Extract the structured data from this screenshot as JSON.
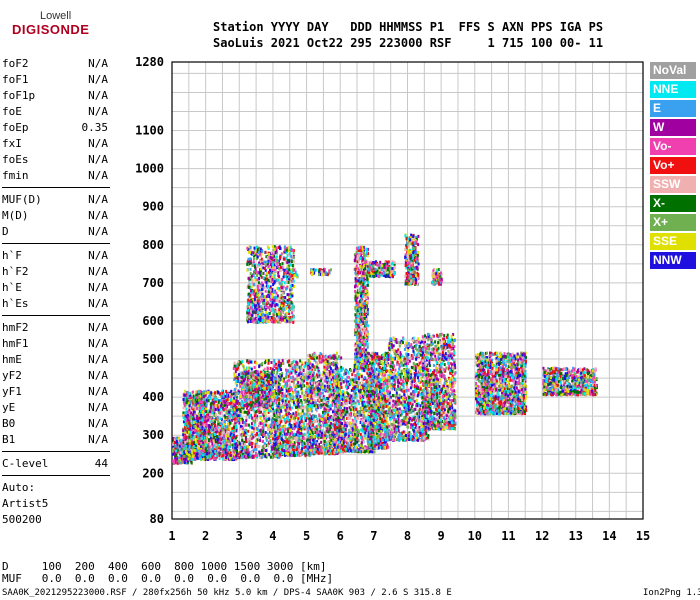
{
  "logo": {
    "line1": "Lowell",
    "line2": "DIGISONDE"
  },
  "header": {
    "line1": "Station YYYY DAY   DDD HHMMSS P1  FFS S AXN PPS IGA PS",
    "line2": "SaoLuis 2021 Oct22 295 223000 RSF     1 715 100 00- 11"
  },
  "params": {
    "group1": [
      {
        "name": "foF2",
        "value": "N/A"
      },
      {
        "name": "foF1",
        "value": "N/A"
      },
      {
        "name": "foF1p",
        "value": "N/A"
      },
      {
        "name": "foE",
        "value": "N/A"
      },
      {
        "name": "foEp",
        "value": "0.35"
      },
      {
        "name": "fxI",
        "value": "N/A"
      },
      {
        "name": "foEs",
        "value": "N/A"
      },
      {
        "name": "fmin",
        "value": "N/A"
      }
    ],
    "group2": [
      {
        "name": "MUF(D)",
        "value": "N/A"
      },
      {
        "name": "M(D)",
        "value": "N/A"
      },
      {
        "name": "D",
        "value": "N/A"
      }
    ],
    "group3": [
      {
        "name": "h`F",
        "value": "N/A"
      },
      {
        "name": "h`F2",
        "value": "N/A"
      },
      {
        "name": "h`E",
        "value": "N/A"
      },
      {
        "name": "h`Es",
        "value": "N/A"
      }
    ],
    "group4": [
      {
        "name": "hmF2",
        "value": "N/A"
      },
      {
        "name": "hmF1",
        "value": "N/A"
      },
      {
        "name": "hmE",
        "value": "N/A"
      },
      {
        "name": "yF2",
        "value": "N/A"
      },
      {
        "name": "yF1",
        "value": "N/A"
      },
      {
        "name": "yE",
        "value": "N/A"
      },
      {
        "name": "B0",
        "value": "N/A"
      },
      {
        "name": "B1",
        "value": "N/A"
      }
    ],
    "clevel": {
      "name": "C-level",
      "value": "44"
    },
    "auto": [
      "Auto:",
      "Artist5",
      "500200"
    ]
  },
  "legend": [
    {
      "label": "NoVal",
      "color": "#a0a0a0"
    },
    {
      "label": "NNE",
      "color": "#00e8f0"
    },
    {
      "label": "E",
      "color": "#3aa0f0"
    },
    {
      "label": "W",
      "color": "#a000a0"
    },
    {
      "label": "Vo-",
      "color": "#f040b0"
    },
    {
      "label": "Vo+",
      "color": "#f01010"
    },
    {
      "label": "SSW",
      "color": "#f0b0b0"
    },
    {
      "label": "X-",
      "color": "#007000"
    },
    {
      "label": "X+",
      "color": "#70b050"
    },
    {
      "label": "SSE",
      "color": "#e0e000"
    },
    {
      "label": "NNW",
      "color": "#2010e0"
    }
  ],
  "bottom_table": {
    "row1": "D     100  200  400  600  800 1000 1500 3000 [km]",
    "row2": "MUF   0.0  0.0  0.0  0.0  0.0  0.0  0.0  0.0 [MHz]"
  },
  "footer": {
    "left": "SAA0K_2021295223000.RSF / 280fx256h 50 kHz 5.0 km / DPS-4 SAA0K 903 / 2.6 S 315.8 E",
    "right": "Ion2Png 1.3.17"
  },
  "chart_data": {
    "type": "scatter",
    "xlim": [
      1,
      15
    ],
    "ylim": [
      80,
      1280
    ],
    "x_ticks": [
      1,
      2,
      3,
      4,
      5,
      6,
      7,
      8,
      9,
      10,
      11,
      12,
      13,
      14,
      15
    ],
    "y_ticks": [
      80,
      200,
      300,
      400,
      500,
      600,
      700,
      800,
      900,
      1000,
      1100,
      1280
    ],
    "grid": true,
    "clusters": [
      {
        "f0": 1.0,
        "f1": 1.6,
        "h0": 230,
        "h1": 300
      },
      {
        "f0": 1.3,
        "f1": 2.0,
        "h0": 240,
        "h1": 420
      },
      {
        "f0": 1.8,
        "f1": 2.9,
        "h0": 240,
        "h1": 420
      },
      {
        "f0": 2.8,
        "f1": 4.2,
        "h0": 245,
        "h1": 500
      },
      {
        "f0": 3.0,
        "f1": 4.0,
        "h0": 380,
        "h1": 470
      },
      {
        "f0": 3.2,
        "f1": 4.6,
        "h0": 600,
        "h1": 800
      },
      {
        "f0": 4.0,
        "f1": 5.2,
        "h0": 250,
        "h1": 500
      },
      {
        "f0": 4.3,
        "f1": 4.7,
        "h0": 720,
        "h1": 740
      },
      {
        "f0": 5.0,
        "f1": 6.0,
        "h0": 255,
        "h1": 520
      },
      {
        "f0": 5.1,
        "f1": 5.7,
        "h0": 725,
        "h1": 740
      },
      {
        "f0": 5.8,
        "f1": 7.0,
        "h0": 260,
        "h1": 480
      },
      {
        "f0": 6.4,
        "f1": 6.8,
        "h0": 480,
        "h1": 800
      },
      {
        "f0": 6.8,
        "f1": 7.4,
        "h0": 270,
        "h1": 520
      },
      {
        "f0": 6.8,
        "f1": 7.6,
        "h0": 720,
        "h1": 760
      },
      {
        "f0": 7.4,
        "f1": 8.6,
        "h0": 290,
        "h1": 560
      },
      {
        "f0": 7.9,
        "f1": 8.3,
        "h0": 700,
        "h1": 830
      },
      {
        "f0": 8.4,
        "f1": 9.4,
        "h0": 320,
        "h1": 570
      },
      {
        "f0": 8.7,
        "f1": 9.0,
        "h0": 700,
        "h1": 740
      },
      {
        "f0": 10.0,
        "f1": 10.8,
        "h0": 360,
        "h1": 520
      },
      {
        "f0": 10.8,
        "f1": 11.5,
        "h0": 360,
        "h1": 520
      },
      {
        "f0": 12.0,
        "f1": 13.6,
        "h0": 410,
        "h1": 480
      }
    ]
  }
}
